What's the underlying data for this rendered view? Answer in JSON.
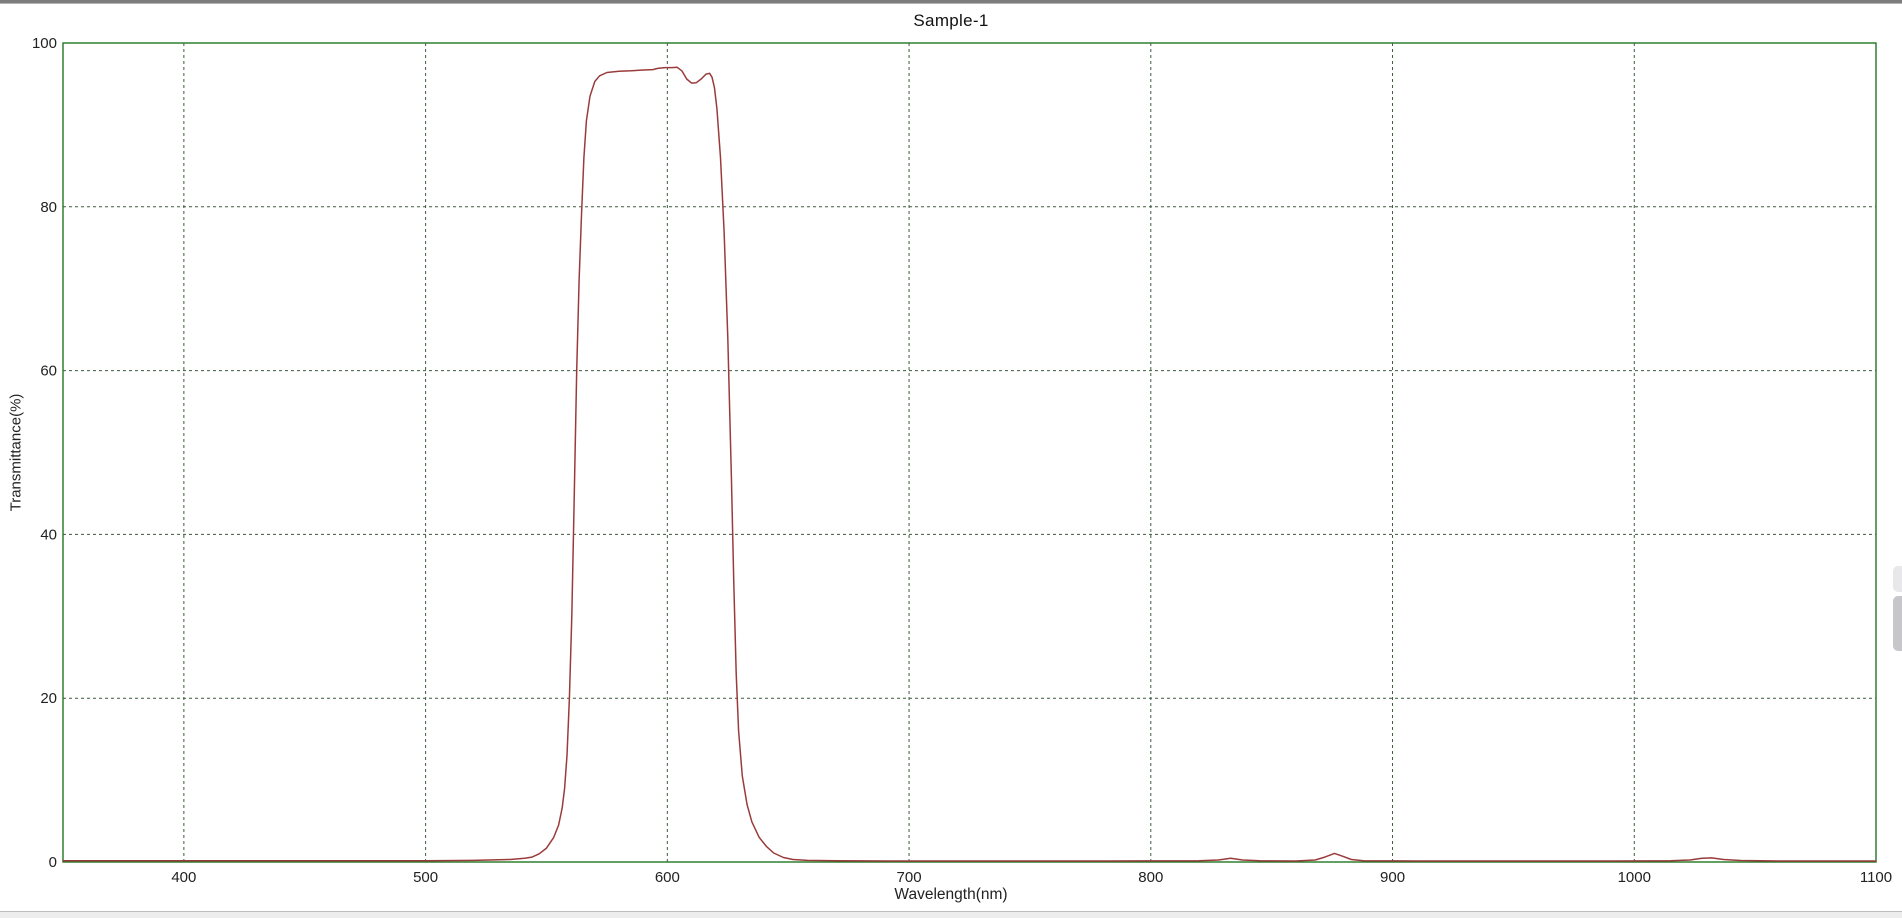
{
  "window": {
    "top_strip_color": "#7d7d7d",
    "bottom_strip_color": "#ededed"
  },
  "colors": {
    "plot_border": "#217821",
    "grid": "#3f5a3f",
    "series": "#9a3b3b",
    "text": "#222222",
    "background": "#ffffff"
  },
  "chart_data": {
    "type": "line",
    "title": "Sample-1",
    "xlabel": "Wavelength(nm)",
    "ylabel": "Transmittance(%)",
    "xlim": [
      350,
      1100
    ],
    "ylim": [
      0,
      100
    ],
    "xticks": [
      400,
      500,
      600,
      700,
      800,
      900,
      1000,
      1100
    ],
    "yticks": [
      0,
      20,
      40,
      60,
      80,
      100
    ],
    "grid": "dashed",
    "legend_position": "none",
    "series": [
      {
        "name": "Sample-1",
        "color": "#9a3b3b",
        "points": [
          [
            350,
            0.15
          ],
          [
            380,
            0.15
          ],
          [
            420,
            0.15
          ],
          [
            460,
            0.15
          ],
          [
            500,
            0.15
          ],
          [
            520,
            0.2
          ],
          [
            535,
            0.3
          ],
          [
            541,
            0.45
          ],
          [
            544,
            0.6
          ],
          [
            547,
            1.0
          ],
          [
            550,
            1.7
          ],
          [
            553,
            3.0
          ],
          [
            555,
            4.5
          ],
          [
            556.5,
            6.6
          ],
          [
            557.5,
            9.0
          ],
          [
            558.5,
            13.0
          ],
          [
            559.5,
            20.0
          ],
          [
            560.5,
            30.0
          ],
          [
            561.5,
            45.0
          ],
          [
            562.5,
            60.0
          ],
          [
            563.5,
            71.0
          ],
          [
            564.5,
            79.0
          ],
          [
            565.5,
            86.0
          ],
          [
            566.5,
            90.5
          ],
          [
            568,
            93.5
          ],
          [
            570,
            95.3
          ],
          [
            572,
            96.0
          ],
          [
            575,
            96.4
          ],
          [
            580,
            96.55
          ],
          [
            585,
            96.6
          ],
          [
            590,
            96.7
          ],
          [
            594,
            96.75
          ],
          [
            596,
            96.9
          ],
          [
            599,
            97.0
          ],
          [
            602,
            97.0
          ],
          [
            604,
            97.05
          ],
          [
            606,
            96.6
          ],
          [
            608,
            95.6
          ],
          [
            610,
            95.1
          ],
          [
            612,
            95.15
          ],
          [
            614,
            95.6
          ],
          [
            616,
            96.2
          ],
          [
            617.5,
            96.3
          ],
          [
            618.5,
            95.8
          ],
          [
            619.5,
            94.5
          ],
          [
            620.5,
            92.0
          ],
          [
            622,
            86.0
          ],
          [
            623.5,
            77.0
          ],
          [
            625,
            64.0
          ],
          [
            626.5,
            47.0
          ],
          [
            627.5,
            34.0
          ],
          [
            628.5,
            23.0
          ],
          [
            629.5,
            16.0
          ],
          [
            631,
            10.5
          ],
          [
            633,
            7.0
          ],
          [
            635,
            4.9
          ],
          [
            638,
            3.0
          ],
          [
            641,
            1.9
          ],
          [
            644,
            1.1
          ],
          [
            648,
            0.55
          ],
          [
            652,
            0.3
          ],
          [
            658,
            0.2
          ],
          [
            670,
            0.15
          ],
          [
            700,
            0.12
          ],
          [
            740,
            0.12
          ],
          [
            780,
            0.12
          ],
          [
            820,
            0.15
          ],
          [
            828,
            0.25
          ],
          [
            833,
            0.45
          ],
          [
            838,
            0.25
          ],
          [
            845,
            0.15
          ],
          [
            860,
            0.12
          ],
          [
            868,
            0.25
          ],
          [
            872,
            0.6
          ],
          [
            876,
            1.05
          ],
          [
            879,
            0.75
          ],
          [
            883,
            0.3
          ],
          [
            888,
            0.15
          ],
          [
            910,
            0.12
          ],
          [
            950,
            0.12
          ],
          [
            990,
            0.12
          ],
          [
            1015,
            0.15
          ],
          [
            1023,
            0.25
          ],
          [
            1028,
            0.45
          ],
          [
            1032,
            0.5
          ],
          [
            1037,
            0.3
          ],
          [
            1044,
            0.18
          ],
          [
            1060,
            0.12
          ],
          [
            1080,
            0.12
          ],
          [
            1100,
            0.12
          ]
        ]
      }
    ]
  }
}
